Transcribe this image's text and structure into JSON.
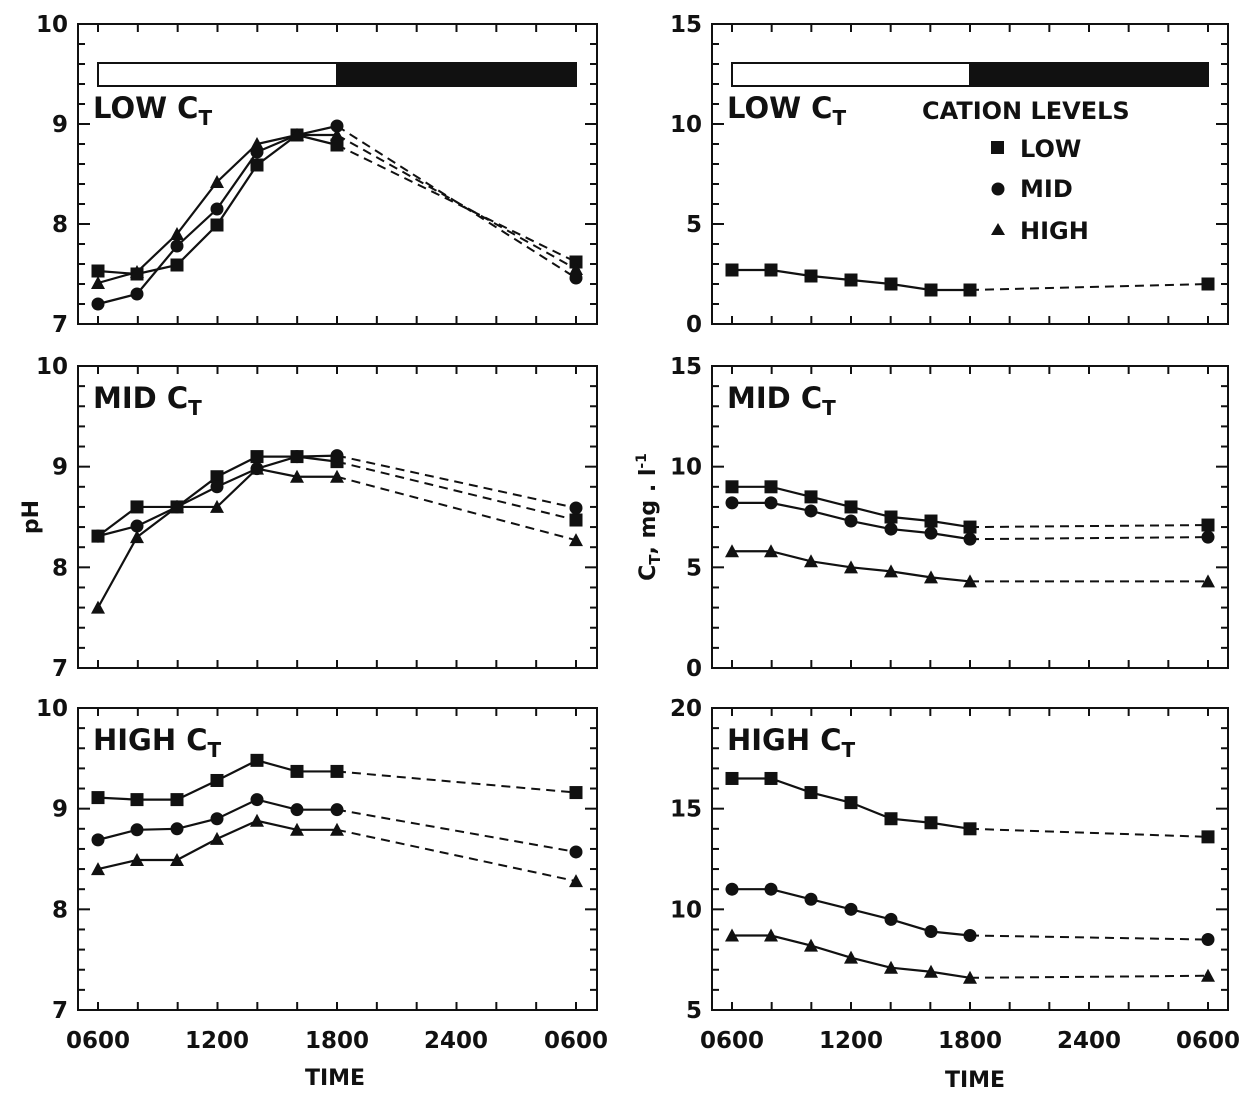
{
  "figure": {
    "ylabel_left": "pH",
    "ylabel_right": "C",
    "ylabel_right_sub": "T",
    "ylabel_right_suffix": ", mg . l",
    "ylabel_right_sup": "-1",
    "xlabel": "TIME",
    "x_tick_labels": [
      "0600",
      "1200",
      "1800",
      "2400",
      "0600"
    ]
  },
  "legend": {
    "title": "CATION LEVELS",
    "items": [
      {
        "label": "LOW",
        "marker": "square"
      },
      {
        "label": "MID",
        "marker": "circle"
      },
      {
        "label": "HIGH",
        "marker": "triangle"
      }
    ]
  },
  "chart_data": [
    {
      "type": "line",
      "panel": "LOW",
      "title_main": "LOW C",
      "title_sub": "T",
      "x": [
        "0600",
        "0800",
        "1000",
        "1200",
        "1400",
        "1600",
        "1800",
        "0600"
      ],
      "ylim": [
        7,
        10
      ],
      "yticks": [
        7,
        8,
        9,
        10
      ],
      "light_dark_bar": true,
      "series": [
        {
          "name": "LOW",
          "marker": "square",
          "values": [
            7.53,
            7.5,
            7.59,
            7.99,
            8.59,
            8.89,
            8.79,
            7.62
          ]
        },
        {
          "name": "MID",
          "marker": "circle",
          "values": [
            7.2,
            7.3,
            7.78,
            8.15,
            8.72,
            8.89,
            8.98,
            7.46
          ]
        },
        {
          "name": "HIGH",
          "marker": "triangle",
          "values": [
            7.41,
            7.52,
            7.9,
            8.42,
            8.8,
            8.89,
            8.89,
            7.55
          ]
        }
      ]
    },
    {
      "type": "line",
      "panel": "LOW",
      "title_main": "LOW C",
      "title_sub": "T",
      "x": [
        "0600",
        "0800",
        "1000",
        "1200",
        "1400",
        "1600",
        "1800",
        "0600"
      ],
      "ylim": [
        0,
        15
      ],
      "yticks": [
        0,
        5,
        10,
        15
      ],
      "light_dark_bar": true,
      "series": [
        {
          "name": "LOW",
          "marker": "square",
          "values": [
            2.7,
            2.7,
            2.4,
            2.2,
            2.0,
            1.7,
            1.7,
            2.0
          ]
        }
      ]
    },
    {
      "type": "line",
      "panel": "MID",
      "title_main": "MID C",
      "title_sub": "T",
      "x": [
        "0600",
        "0800",
        "1000",
        "1200",
        "1400",
        "1600",
        "1800",
        "0600"
      ],
      "ylim": [
        7,
        10
      ],
      "yticks": [
        7,
        8,
        9,
        10
      ],
      "series": [
        {
          "name": "LOW",
          "marker": "square",
          "values": [
            8.31,
            8.6,
            8.6,
            8.9,
            9.1,
            9.1,
            9.05,
            8.47
          ]
        },
        {
          "name": "MID",
          "marker": "circle",
          "values": [
            8.31,
            8.41,
            8.6,
            8.8,
            8.98,
            9.1,
            9.11,
            8.59
          ]
        },
        {
          "name": "HIGH",
          "marker": "triangle",
          "values": [
            7.6,
            8.3,
            8.6,
            8.6,
            8.98,
            8.9,
            8.9,
            8.27
          ]
        }
      ]
    },
    {
      "type": "line",
      "panel": "MID",
      "title_main": "MID C",
      "title_sub": "T",
      "x": [
        "0600",
        "0800",
        "1000",
        "1200",
        "1400",
        "1600",
        "1800",
        "0600"
      ],
      "ylim": [
        0,
        15
      ],
      "yticks": [
        0,
        5,
        10,
        15
      ],
      "series": [
        {
          "name": "LOW",
          "marker": "square",
          "values": [
            9.0,
            9.0,
            8.5,
            8.0,
            7.5,
            7.3,
            7.0,
            7.1
          ]
        },
        {
          "name": "MID",
          "marker": "circle",
          "values": [
            8.2,
            8.2,
            7.8,
            7.3,
            6.9,
            6.7,
            6.4,
            6.5
          ]
        },
        {
          "name": "HIGH",
          "marker": "triangle",
          "values": [
            5.8,
            5.8,
            5.3,
            5.0,
            4.8,
            4.5,
            4.3,
            4.3
          ]
        }
      ]
    },
    {
      "type": "line",
      "panel": "HIGH",
      "title_main": "HIGH C",
      "title_sub": "T",
      "x": [
        "0600",
        "0800",
        "1000",
        "1200",
        "1400",
        "1600",
        "1800",
        "0600"
      ],
      "ylim": [
        7,
        10
      ],
      "yticks": [
        7,
        8,
        9,
        10
      ],
      "series": [
        {
          "name": "LOW",
          "marker": "square",
          "values": [
            9.11,
            9.09,
            9.09,
            9.28,
            9.48,
            9.37,
            9.37,
            9.16
          ]
        },
        {
          "name": "MID",
          "marker": "circle",
          "values": [
            8.69,
            8.79,
            8.8,
            8.9,
            9.09,
            8.99,
            8.99,
            8.57
          ]
        },
        {
          "name": "HIGH",
          "marker": "triangle",
          "values": [
            8.4,
            8.49,
            8.49,
            8.7,
            8.88,
            8.79,
            8.79,
            8.28
          ]
        }
      ]
    },
    {
      "type": "line",
      "panel": "HIGH",
      "title_main": "HIGH C",
      "title_sub": "T",
      "x": [
        "0600",
        "0800",
        "1000",
        "1200",
        "1400",
        "1600",
        "1800",
        "0600"
      ],
      "ylim": [
        5,
        20
      ],
      "yticks": [
        5,
        10,
        15,
        20
      ],
      "series": [
        {
          "name": "LOW",
          "marker": "square",
          "values": [
            16.5,
            16.5,
            15.8,
            15.3,
            14.5,
            14.3,
            14.0,
            13.6
          ]
        },
        {
          "name": "MID",
          "marker": "circle",
          "values": [
            11.0,
            11.0,
            10.5,
            10.0,
            9.5,
            8.9,
            8.7,
            8.5
          ]
        },
        {
          "name": "HIGH",
          "marker": "triangle",
          "values": [
            8.7,
            8.7,
            8.2,
            7.6,
            7.1,
            6.9,
            6.6,
            6.7
          ]
        }
      ]
    }
  ]
}
